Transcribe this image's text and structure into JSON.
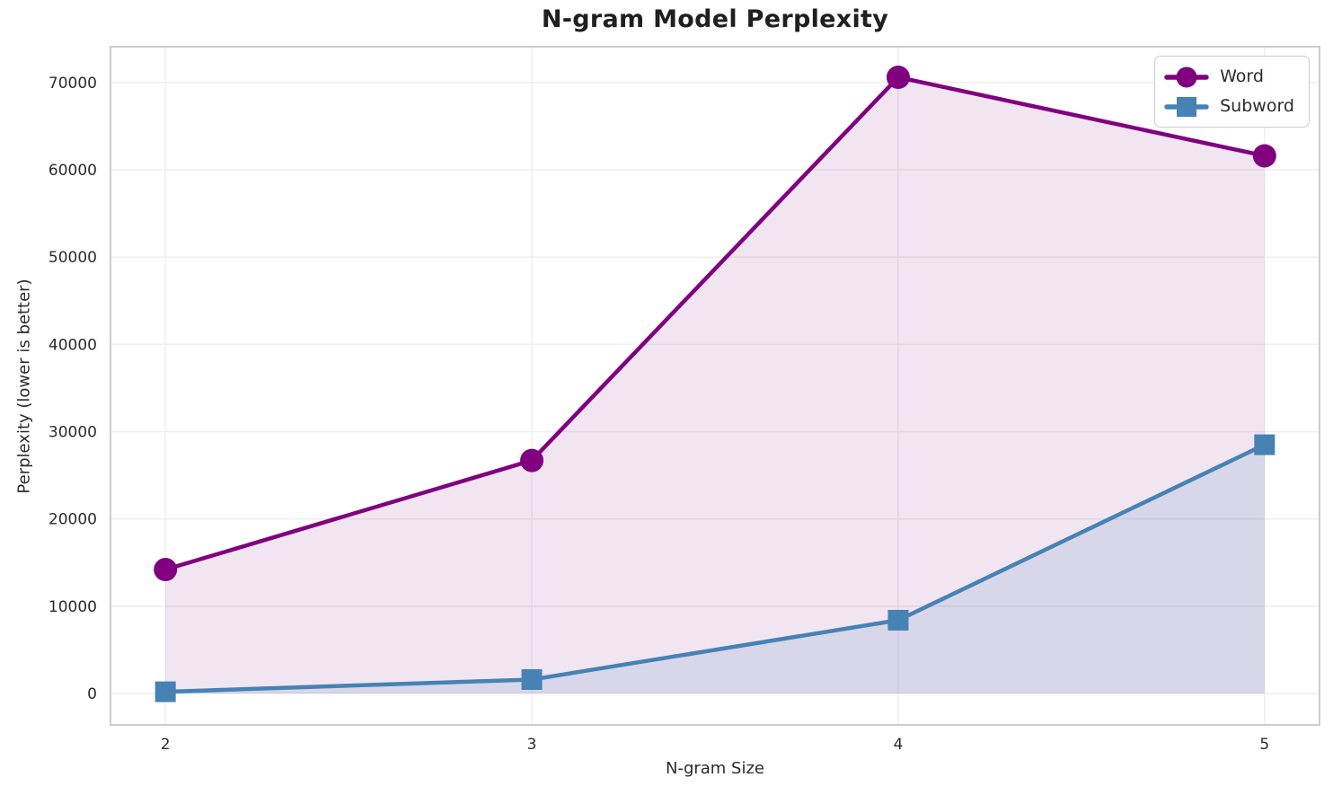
{
  "chart_data": {
    "type": "line",
    "title": "N-gram Model Perplexity",
    "xlabel": "N-gram Size",
    "ylabel": "Perplexity (lower is better)",
    "x": [
      2,
      3,
      4,
      5
    ],
    "series": [
      {
        "name": "Word",
        "marker": "circle",
        "color": "#800080",
        "fill_alpha": 0.1,
        "values": [
          14200,
          26700,
          70600,
          61600
        ]
      },
      {
        "name": "Subword",
        "marker": "square",
        "color": "#4682B4",
        "fill_alpha": 0.15,
        "values": [
          200,
          1600,
          8400,
          28500
        ]
      }
    ],
    "xticks": [
      2,
      3,
      4,
      5
    ],
    "yticks": [
      0,
      10000,
      20000,
      30000,
      40000,
      50000,
      60000,
      70000
    ],
    "xlim": [
      1.85,
      5.15
    ],
    "ylim": [
      -3600,
      74100
    ],
    "grid": true,
    "fill_to_zero": true,
    "legend": {
      "position": "top-right"
    },
    "colors": {
      "grid": "#f0f0f0",
      "spine": "#cccccc",
      "text": "#2b2b2b",
      "title": "#1f1f1f",
      "background": "#ffffff"
    }
  }
}
